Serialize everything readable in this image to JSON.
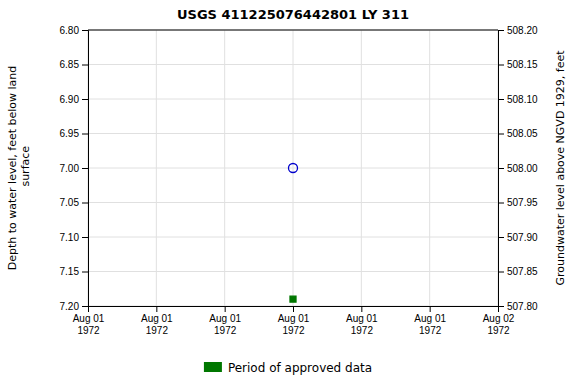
{
  "chart_data": {
    "type": "scatter",
    "title": "USGS 411225076442801 LY   311",
    "y_label": "Depth to water level, feet below land\n surface",
    "y2_label": "Groundwater level above NGVD 1929, feet",
    "categories": [
      "Aug 01\n1972",
      "Aug 01\n1972",
      "Aug 01\n1972",
      "Aug 01\n1972",
      "Aug 01\n1972",
      "Aug 01\n1972",
      "Aug 02\n1972"
    ],
    "series": [
      {
        "color": "#0000cc",
        "marker": "circle",
        "values": [
          null,
          null,
          null,
          7.0,
          null,
          null,
          null
        ]
      },
      {
        "name": "Period of approved data",
        "color": "#007700",
        "marker": "square",
        "values": [
          null,
          null,
          null,
          7.19,
          null,
          null,
          null
        ]
      }
    ],
    "ylim": [
      7.2,
      6.8
    ],
    "yticks": [
      {
        "value": 6.8,
        "label": "6.80"
      },
      6.85,
      {
        "value": 6.9,
        "label": "6.90"
      },
      6.95,
      {
        "value": 7.0,
        "label": "7.00"
      },
      7.05,
      {
        "value": 7.1,
        "label": "7.10"
      },
      7.15,
      {
        "value": 7.2,
        "label": "7.20"
      }
    ],
    "y2lim": [
      507.8,
      508.2
    ],
    "y2ticks": [
      {
        "value": 507.8,
        "label": "507.80"
      },
      507.85,
      {
        "value": 507.9,
        "label": "507.90"
      },
      507.95,
      {
        "value": 508,
        "label": "508.00"
      },
      508.05,
      {
        "value": 508.1,
        "label": "508.10"
      },
      508.15,
      {
        "value": 508.2,
        "label": "508.20"
      }
    ],
    "grid": true,
    "legend": "bottom"
  }
}
